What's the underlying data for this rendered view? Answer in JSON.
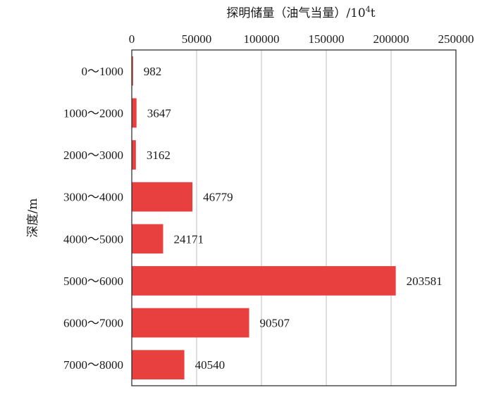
{
  "chart_data": {
    "type": "bar",
    "orientation": "horizontal",
    "title": "",
    "xlabel_main": "探明储量（油气当量）/10",
    "xlabel_sup": "4",
    "xlabel_tail": "t",
    "ylabel": "深度/m",
    "categories": [
      "0～1000",
      "1000～2000",
      "2000～3000",
      "3000～4000",
      "4000～5000",
      "5000～6000",
      "6000～7000",
      "7000～8000"
    ],
    "values": [
      982,
      3647,
      3162,
      46779,
      24171,
      203581,
      90507,
      40540
    ],
    "value_labels": [
      "982",
      "3647",
      "3162",
      "46779",
      "24171",
      "203581",
      "90507",
      "40540"
    ],
    "xlim": [
      0,
      250000
    ],
    "xticks": [
      0,
      50000,
      100000,
      150000,
      200000,
      250000
    ],
    "xtick_labels": [
      "0",
      "50000",
      "100000",
      "150000",
      "200000",
      "250000"
    ],
    "x_axis_position": "top",
    "grid": "vertical",
    "bar_color": "#e8403e",
    "grid_color": "#bdbdbd",
    "frame_color": "#222222"
  }
}
